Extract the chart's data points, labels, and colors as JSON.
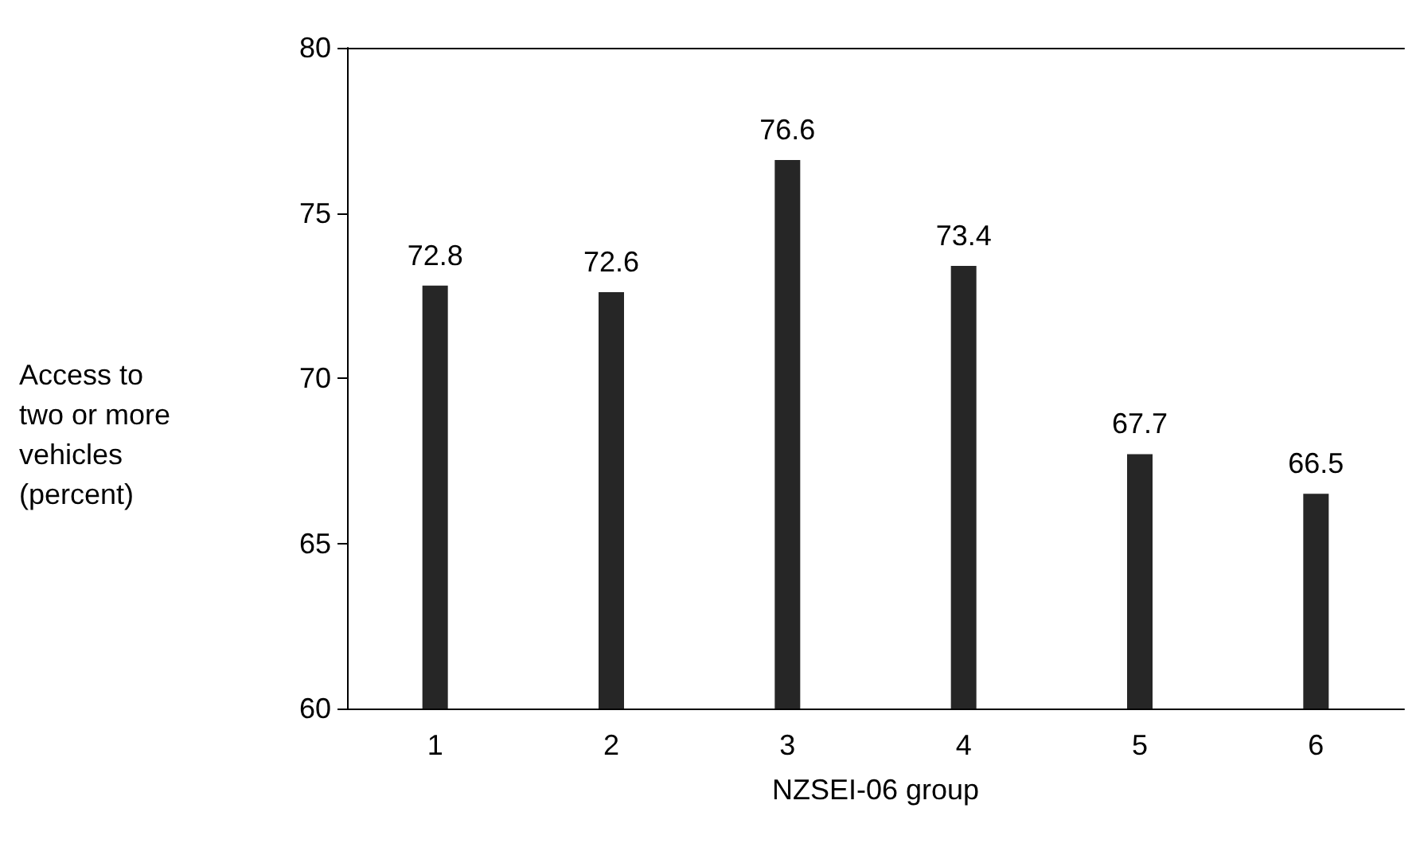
{
  "chart_data": {
    "type": "bar",
    "xlabel": "NZSEI-06 group",
    "ylabel": "Access to two or more vehicles (percent)",
    "categories": [
      "1",
      "2",
      "3",
      "4",
      "5",
      "6"
    ],
    "values": [
      72.8,
      72.6,
      76.6,
      73.4,
      67.7,
      66.5
    ],
    "color": "#262626",
    "ylim": [
      60,
      80
    ],
    "yticks": [
      60,
      65,
      70,
      75,
      80
    ],
    "grid": false,
    "data_labels": true
  }
}
